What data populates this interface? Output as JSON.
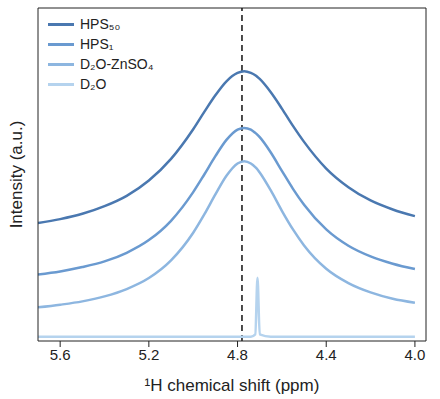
{
  "chart_data": {
    "type": "line",
    "x_label": "¹H chemical shift (ppm)",
    "y_label": "Intensity (a.u.)",
    "x": [
      5.7,
      5.6,
      5.5,
      5.4,
      5.3,
      5.2,
      5.1,
      5.0,
      4.95,
      4.9,
      4.85,
      4.8,
      4.77,
      4.74,
      4.72,
      4.71,
      4.7,
      4.65,
      4.6,
      4.55,
      4.5,
      4.4,
      4.3,
      4.2,
      4.1,
      4.0
    ],
    "xlim": [
      5.7,
      3.95
    ],
    "xticks": [
      5.6,
      5.2,
      4.8,
      4.4,
      {
        "value": 4.0,
        "label": "4.0"
      }
    ],
    "ylim": [
      0,
      100
    ],
    "yticks": [],
    "tick_labels": "x",
    "legend": "upper left",
    "reference_lines": [
      {
        "x": 4.78,
        "line_style": "dashed"
      }
    ],
    "series": [
      {
        "name": "HPS₅₀",
        "color": "#4a78b0",
        "values": [
          35.4,
          36.6,
          38.2,
          40.5,
          43.6,
          48.2,
          54.7,
          63.6,
          68.8,
          73.8,
          78.0,
          80.5,
          81.0,
          80.5,
          79.8,
          79.3,
          78.7,
          74.7,
          69.8,
          64.6,
          59.8,
          51.8,
          46.2,
          42.2,
          39.5,
          37.5
        ]
      },
      {
        "name": "HPS₁",
        "color": "#6a9ad0",
        "values": [
          20.0,
          20.9,
          22.2,
          23.9,
          26.5,
          30.3,
          36.1,
          44.7,
          50.0,
          55.5,
          60.4,
          63.5,
          64.0,
          63.5,
          62.5,
          61.9,
          61.2,
          56.6,
          51.1,
          45.7,
          40.9,
          33.5,
          28.6,
          25.4,
          23.2,
          21.6
        ]
      },
      {
        "name": "D₂O-ZnSO₄",
        "color": "#8db6e0",
        "values": [
          10.1,
          10.9,
          11.9,
          13.4,
          15.6,
          18.9,
          24.2,
          32.5,
          38.0,
          44.0,
          49.6,
          53.3,
          54.0,
          53.3,
          52.2,
          51.5,
          50.6,
          45.2,
          39.1,
          33.5,
          28.7,
          21.7,
          17.4,
          14.6,
          12.7,
          11.5
        ]
      },
      {
        "name": "D₂O",
        "color": "#b5d3ee",
        "values": [
          1.3,
          1.3,
          1.3,
          1.3,
          1.3,
          1.3,
          1.3,
          1.3,
          1.3,
          1.3,
          1.3,
          1.3,
          1.3,
          1.3,
          2.0,
          19.0,
          2.0,
          1.3,
          1.3,
          1.3,
          1.3,
          1.3,
          1.3,
          1.3,
          1.3,
          1.3
        ]
      }
    ]
  }
}
